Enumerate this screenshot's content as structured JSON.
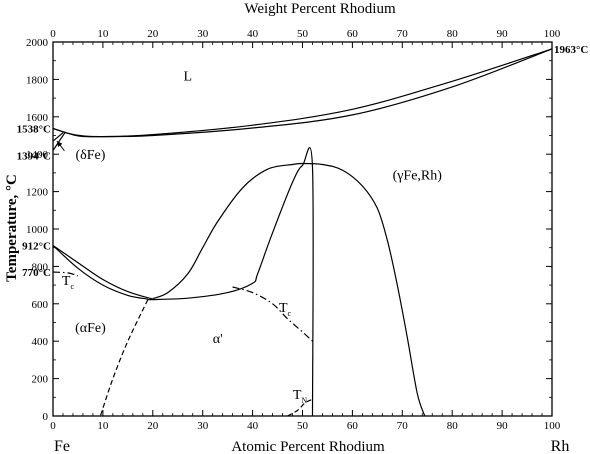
{
  "chart_data": {
    "type": "line",
    "title": "Weight Percent Rhodium",
    "xlabel": "Atomic Percent Rhodium",
    "ylabel": "Temperature, °C",
    "left_element": "Fe",
    "right_element": "Rh",
    "xlim": [
      0,
      100
    ],
    "ylim": [
      0,
      2000
    ],
    "x_ticks": [
      0,
      10,
      20,
      30,
      40,
      50,
      60,
      70,
      80,
      90,
      100
    ],
    "top_ticks": [
      0,
      10,
      20,
      30,
      40,
      50,
      60,
      70,
      80,
      90,
      100
    ],
    "y_ticks": [
      0,
      200,
      400,
      600,
      800,
      1000,
      1200,
      1400,
      1600,
      1800,
      2000
    ],
    "point_labels": [
      {
        "text": "1538°C",
        "x": 0,
        "y": 1538
      },
      {
        "text": "1394°C",
        "x": 0,
        "y": 1394
      },
      {
        "text": "912°C",
        "x": 0,
        "y": 912
      },
      {
        "text": "770°C",
        "x": 0,
        "y": 770
      },
      {
        "text": "1963°C",
        "x": 100,
        "y": 1963
      }
    ],
    "phase_labels": [
      {
        "text": "L",
        "x": 27,
        "y": 1795
      },
      {
        "text": "(δFe)",
        "x": 7.5,
        "y": 1375
      },
      {
        "text": "(γFe,Rh)",
        "x": 73,
        "y": 1265
      },
      {
        "text": "(αFe)",
        "x": 7.5,
        "y": 450
      },
      {
        "text": "α'",
        "x": 33,
        "y": 390
      },
      {
        "text": "T",
        "sub": "c",
        "x": 3,
        "y": 700
      },
      {
        "text": "T",
        "sub": "c",
        "x": 46.5,
        "y": 555
      },
      {
        "text": "T",
        "sub": "N",
        "x": 49.5,
        "y": 90
      }
    ],
    "series": [
      {
        "style": "solid",
        "points": [
          [
            0,
            1538
          ],
          [
            5,
            1498
          ],
          [
            10,
            1494
          ],
          [
            20,
            1500
          ],
          [
            40,
            1540
          ],
          [
            60,
            1610
          ],
          [
            80,
            1760
          ],
          [
            100,
            1963
          ]
        ]
      },
      {
        "style": "solid",
        "points": [
          [
            0,
            1538
          ],
          [
            3,
            1512
          ],
          [
            6,
            1498
          ],
          [
            10,
            1494
          ],
          [
            20,
            1505
          ],
          [
            40,
            1555
          ],
          [
            60,
            1640
          ],
          [
            80,
            1790
          ],
          [
            100,
            1963
          ]
        ]
      },
      {
        "style": "solid",
        "points": [
          [
            0,
            1470
          ],
          [
            2,
            1515
          ]
        ]
      },
      {
        "style": "solid",
        "points": [
          [
            0,
            1420
          ],
          [
            2.5,
            1520
          ]
        ]
      },
      {
        "style": "solid",
        "points": [
          [
            0,
            912
          ],
          [
            5,
            820
          ],
          [
            10,
            730
          ],
          [
            15,
            665
          ],
          [
            20,
            625
          ]
        ]
      },
      {
        "style": "solid",
        "points": [
          [
            0,
            912
          ],
          [
            5,
            790
          ],
          [
            10,
            700
          ],
          [
            15,
            645
          ],
          [
            19,
            625
          ]
        ]
      },
      {
        "style": "solid",
        "points": [
          [
            19,
            622
          ],
          [
            27,
            630
          ],
          [
            35,
            660
          ],
          [
            40,
            710
          ],
          [
            41,
            760
          ],
          [
            44,
            980
          ],
          [
            48,
            1250
          ],
          [
            50,
            1340
          ],
          [
            52,
            1330
          ],
          [
            52,
            0
          ]
        ]
      },
      {
        "style": "solid",
        "points": [
          [
            20,
            628
          ],
          [
            23,
            660
          ],
          [
            27,
            760
          ],
          [
            30,
            900
          ],
          [
            33,
            1040
          ],
          [
            38,
            1220
          ],
          [
            43,
            1320
          ],
          [
            48,
            1345
          ],
          [
            50,
            1350
          ],
          [
            54,
            1345
          ],
          [
            58,
            1315
          ],
          [
            62,
            1230
          ],
          [
            65,
            1110
          ],
          [
            67,
            940
          ],
          [
            69,
            700
          ],
          [
            71,
            420
          ],
          [
            73,
            120
          ],
          [
            74.5,
            0
          ]
        ]
      },
      {
        "style": "dashdot",
        "points": [
          [
            0,
            770
          ],
          [
            3,
            765
          ],
          [
            5,
            750
          ]
        ]
      },
      {
        "style": "dashdot",
        "points": [
          [
            36,
            690
          ],
          [
            40,
            660
          ],
          [
            44,
            600
          ],
          [
            47,
            520
          ],
          [
            50,
            450
          ],
          [
            52,
            400
          ]
        ]
      },
      {
        "style": "dashed",
        "points": [
          [
            19,
            622
          ],
          [
            15,
            400
          ],
          [
            12,
            200
          ],
          [
            9.5,
            0
          ]
        ]
      },
      {
        "style": "dashed",
        "points": [
          [
            47,
            0
          ],
          [
            49,
            30
          ],
          [
            50.5,
            70
          ],
          [
            52,
            90
          ]
        ]
      }
    ]
  }
}
